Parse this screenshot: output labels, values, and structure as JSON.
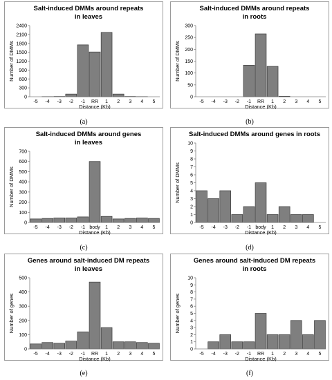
{
  "chart_data": [
    {
      "type": "bar",
      "title_lines": [
        "Salt-induced DMMs around repeats",
        "in leaves"
      ],
      "categories": [
        "-5",
        "-4",
        "-3",
        "-2",
        "-1",
        "RR",
        "1",
        "2",
        "3",
        "4",
        "5"
      ],
      "values": [
        0,
        5,
        10,
        90,
        1750,
        1510,
        2170,
        90,
        10,
        5,
        0
      ],
      "xlabel": "Distance (Kb)",
      "ylabel": "Number of DMMs",
      "yticks": [
        "0",
        "300",
        "600",
        "900",
        "1200",
        "1500",
        "1800",
        "2100",
        "2400"
      ],
      "ylim": [
        0,
        2400
      ],
      "bar_color": "#7f7f7f",
      "caption": "(a)"
    },
    {
      "type": "bar",
      "title_lines": [
        "Salt-induced DMMs around repeats",
        "in roots"
      ],
      "categories": [
        "-5",
        "-4",
        "-3",
        "-2",
        "-1",
        "RR",
        "1",
        "2",
        "3",
        "4",
        "5"
      ],
      "values": [
        0,
        0,
        0,
        0,
        133,
        265,
        128,
        2,
        0,
        0,
        0
      ],
      "xlabel": "Distance (Kb)",
      "ylabel": "Number of DMMs",
      "yticks": [
        "0",
        "50",
        "100",
        "150",
        "200",
        "250",
        "300"
      ],
      "ylim": [
        0,
        300
      ],
      "bar_color": "#7f7f7f",
      "caption": "(b)"
    },
    {
      "type": "bar",
      "title_lines": [
        "Salt-induced DMMs around genes",
        "in leaves"
      ],
      "categories": [
        "-5",
        "-4",
        "-3",
        "-2",
        "-1",
        "body",
        "1",
        "2",
        "3",
        "4",
        "5"
      ],
      "values": [
        35,
        40,
        45,
        45,
        55,
        600,
        60,
        35,
        40,
        45,
        40
      ],
      "xlabel": "Distance (Kb)",
      "ylabel": "Number of DMMs",
      "yticks": [
        "0",
        "100",
        "200",
        "300",
        "400",
        "500",
        "600",
        "700"
      ],
      "ylim": [
        0,
        700
      ],
      "bar_color": "#7f7f7f",
      "caption": "(c)"
    },
    {
      "type": "bar",
      "title_lines": [
        "Salt-induced DMMs around genes in roots"
      ],
      "categories": [
        "-5",
        "-4",
        "-3",
        "-2",
        "-1",
        "body",
        "1",
        "2",
        "3",
        "4",
        "5"
      ],
      "values": [
        4,
        3,
        4,
        1,
        2,
        5,
        1,
        2,
        1,
        1,
        0
      ],
      "xlabel": "Distance (Kb)",
      "ylabel": "Number of DMMs",
      "yticks": [
        "0",
        "1",
        "2",
        "3",
        "4",
        "5",
        "6",
        "7",
        "8",
        "9",
        "10"
      ],
      "ylim": [
        0,
        10
      ],
      "bar_color": "#7f7f7f",
      "caption": "(d)"
    },
    {
      "type": "bar",
      "title_lines": [
        "Genes around salt-induced DM repeats",
        "in leaves"
      ],
      "categories": [
        "-5",
        "-4",
        "-3",
        "-2",
        "-1",
        "RR",
        "1",
        "2",
        "3",
        "4",
        "5"
      ],
      "values": [
        35,
        45,
        40,
        55,
        120,
        470,
        150,
        50,
        50,
        45,
        40
      ],
      "xlabel": "Distance (Kb)",
      "ylabel": "Number of genes",
      "yticks": [
        "0",
        "100",
        "200",
        "300",
        "400",
        "500"
      ],
      "ylim": [
        0,
        500
      ],
      "bar_color": "#7f7f7f",
      "caption": "(e)"
    },
    {
      "type": "bar",
      "title_lines": [
        "Genes around salt-induced DM repeats",
        "in roots"
      ],
      "categories": [
        "-5",
        "-4",
        "-3",
        "-2",
        "-1",
        "RR",
        "1",
        "2",
        "3",
        "4",
        "5"
      ],
      "values": [
        0,
        1,
        2,
        1,
        1,
        5,
        2,
        2,
        4,
        2,
        4
      ],
      "xlabel": "Distance (Kb)",
      "ylabel": "Number of genes",
      "yticks": [
        "0",
        "1",
        "2",
        "3",
        "4",
        "5",
        "6",
        "7",
        "8",
        "9",
        "10"
      ],
      "ylim": [
        0,
        10
      ],
      "bar_color": "#7f7f7f",
      "caption": "(f)"
    }
  ]
}
